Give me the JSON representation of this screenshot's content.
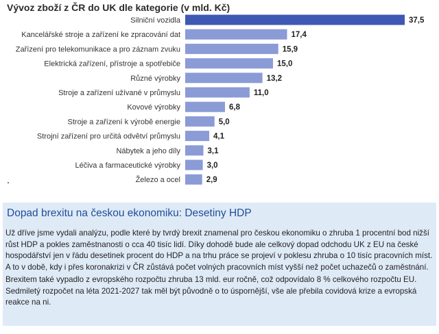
{
  "chart_data": {
    "type": "bar",
    "orientation": "horizontal",
    "title": "Vývoz zboží z ČR do UK dle kategorie (v mld. Kč)",
    "categories": [
      "Silniční vozidla",
      "Kancelářské stroje a zařízení ke zpracování dat",
      "Zařízení pro telekomunikace a pro záznam zvuku",
      "Elektrická zařízení, přístroje a spotřebiče",
      "Různé výrobky",
      "Stroje a zařízení užívané v průmyslu",
      "Kovové výrobky",
      "Stroje a zařízení k výrobě energie",
      "Strojní zařízení pro určitá odvětví průmyslu",
      "Nábytek a jeho díly",
      "Léčiva a farmaceutické výrobky",
      "Železo a ocel"
    ],
    "values": [
      37.5,
      17.4,
      15.9,
      15.0,
      13.2,
      11.0,
      6.8,
      5.0,
      4.1,
      3.1,
      3.0,
      2.9
    ],
    "value_labels": [
      "37,5",
      "17,4",
      "15,9",
      "15,0",
      "13,2",
      "11,0",
      "6,8",
      "5,0",
      "4,1",
      "3,1",
      "3,0",
      "2,9"
    ],
    "xlim": [
      0,
      37.5
    ],
    "colors": {
      "first_bar": "#3f58b4",
      "bars": "#8a9bd6"
    },
    "grid": false,
    "legend": "none"
  },
  "textbox": {
    "heading": "Dopad brexitu na českou ekonomiku: Desetiny HDP",
    "paragraphs": [
      "Už dříve jsme vydali analýzu, podle které by tvrdý brexit znamenal pro českou ekonomiku o zhruba 1 procentní bod nižší růst HDP a pokles zaměstnanosti o cca 40 tisíc lidí. Díky dohodě bude ale celkový dopad odchodu UK z  EU na české hospodářství jen v řádu desetinek procent do HDP a na trhu práce se projeví v poklesu zhruba o  10  tisíc pracovních míst. A to v době, kdy i přes koronakrizi v ČR zůstává počet volných pracovních míst vyšší než počet uchazečů o zaměstnání.",
      "Brexitem také vypadlo z evropského rozpočtu zhruba 13  mld. eur ročně, což odpovídalo 8 % celkového rozpočtu EU. Sedmiletý rozpočet na léta 2021-2027 tak měl být původně o  to úspornější, vše ale přebila covidová krize a evropská reakce na ni."
    ],
    "background_color": "#dfeaf7",
    "heading_color": "#1f4e98"
  }
}
